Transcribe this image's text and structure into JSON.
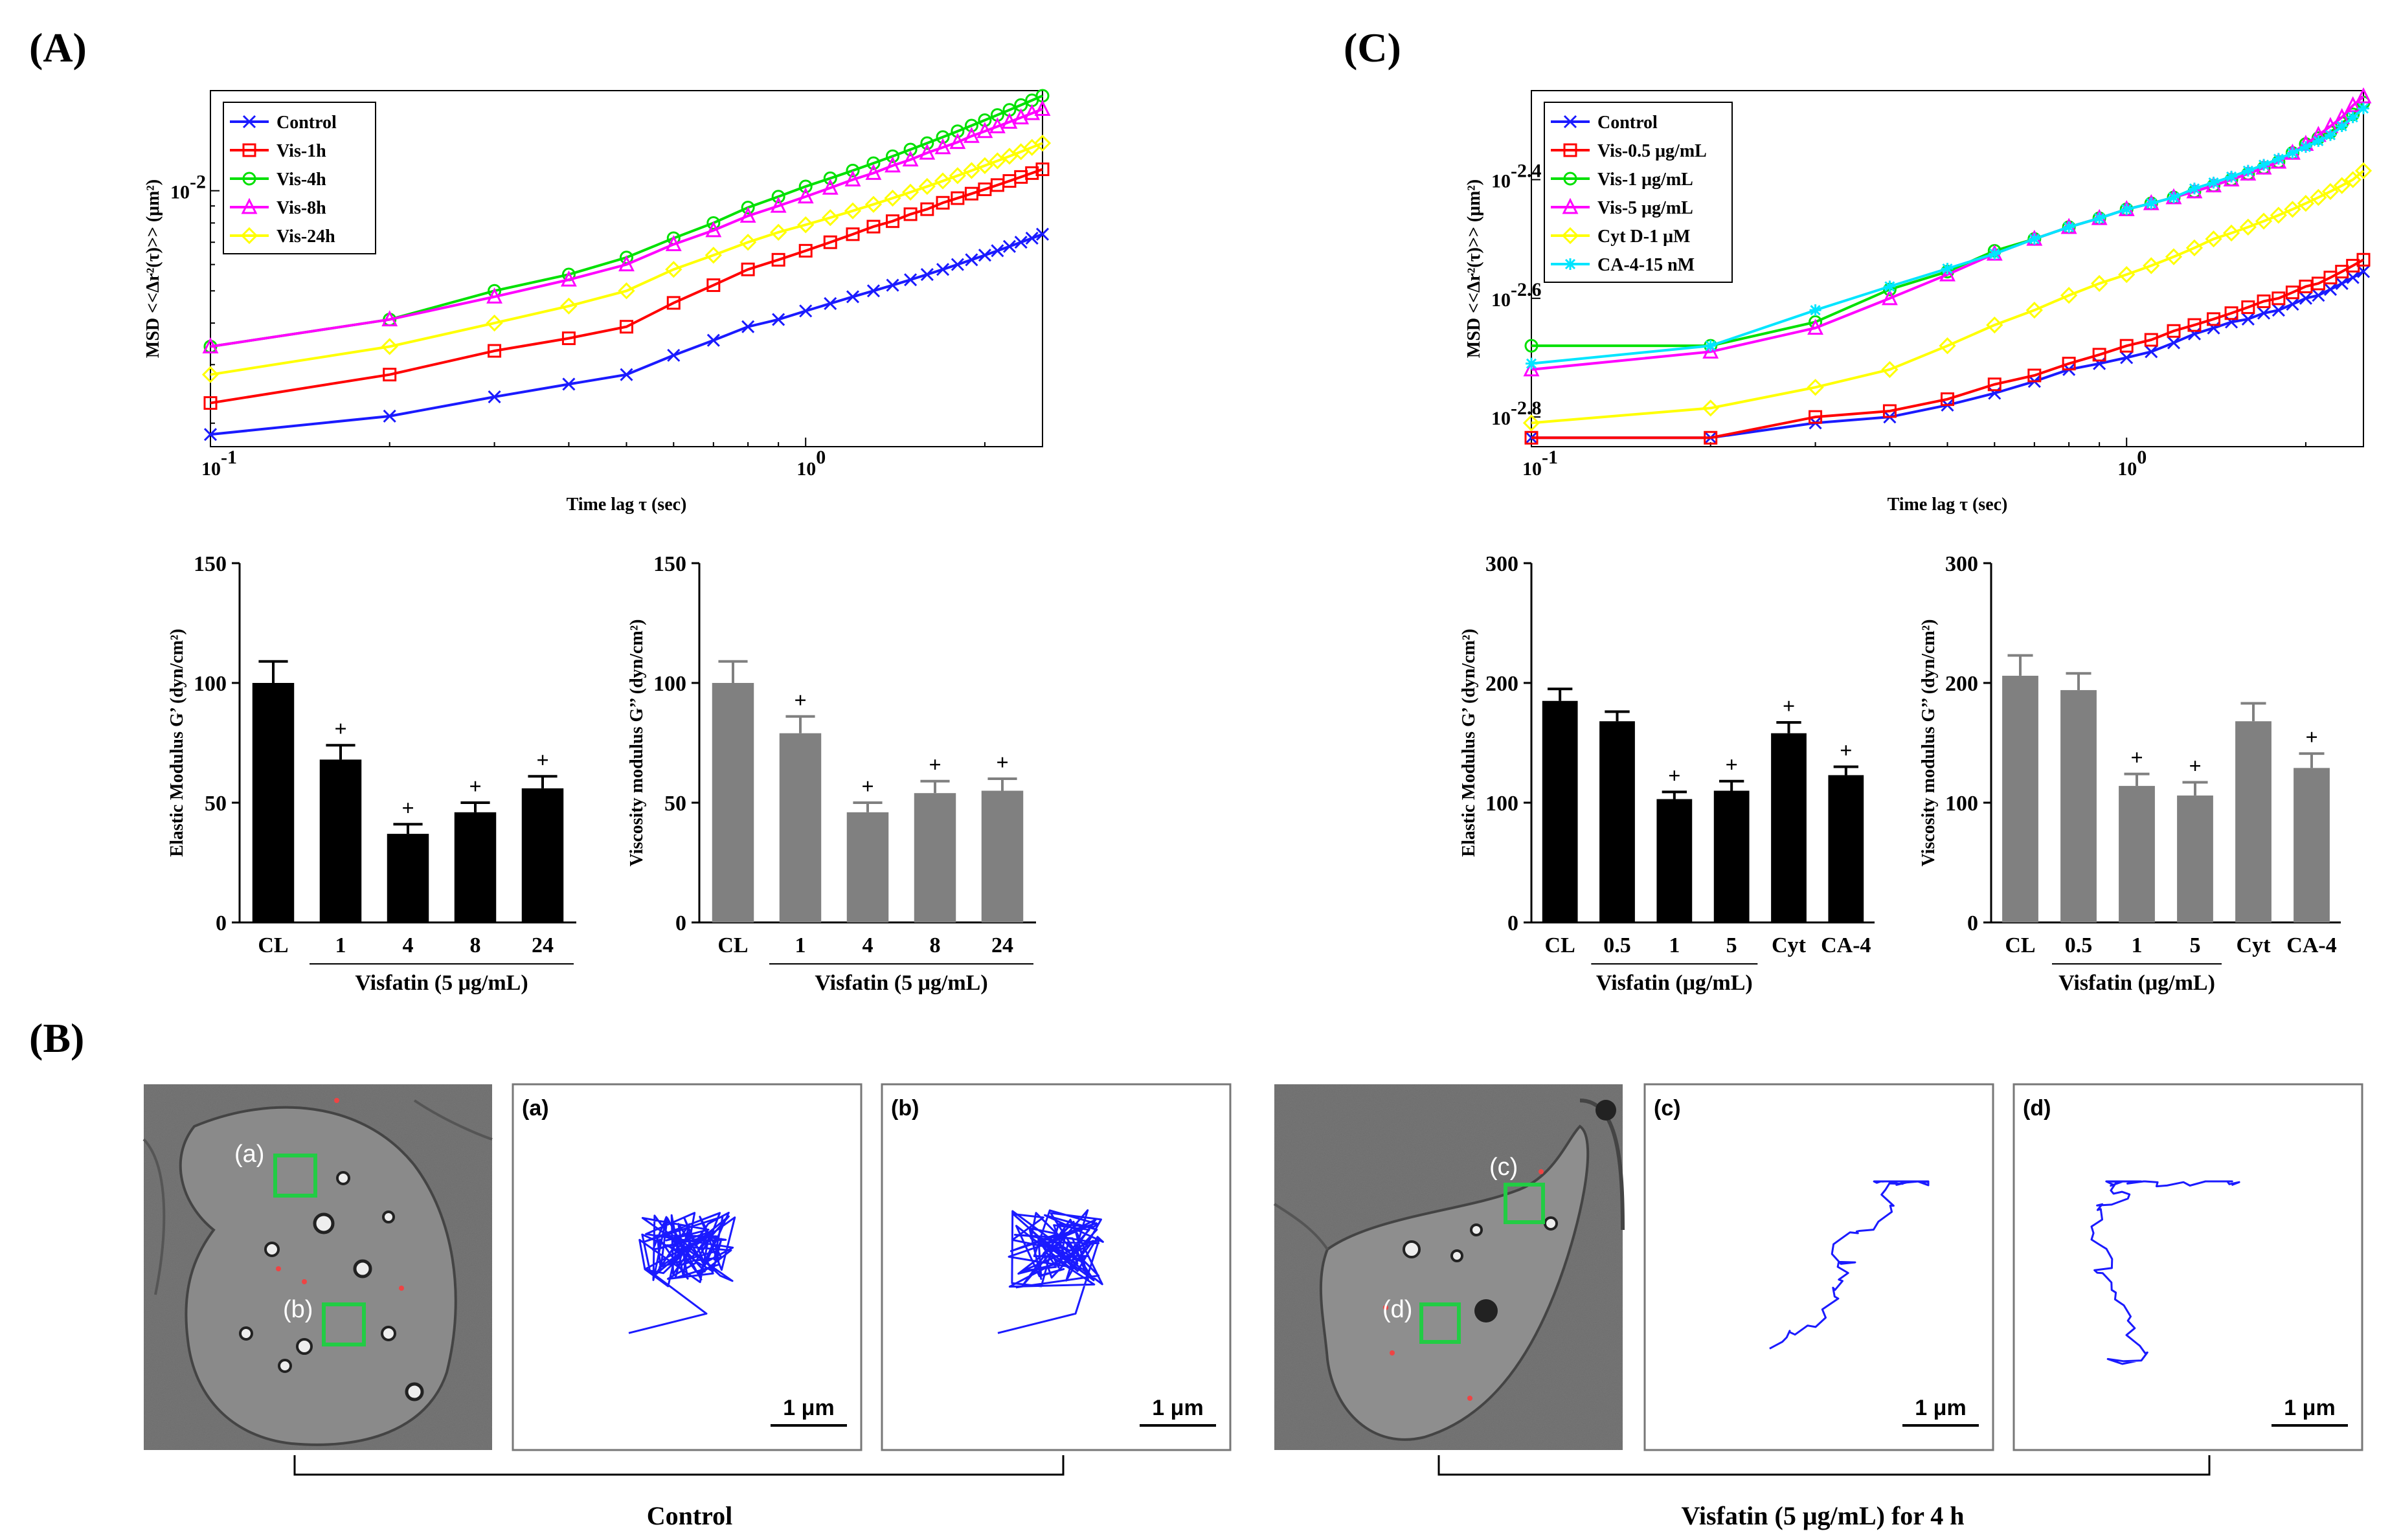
{
  "panels": {
    "A": "(A)",
    "B": "(B)",
    "C": "(C)"
  },
  "colors": {
    "control": "#1a1aff",
    "vis1": "#ff0000",
    "vis4": "#00e000",
    "vis8": "#ff00ff",
    "vis24": "#ffff00",
    "ca4": "#00e5ff",
    "black_bar": "#000000",
    "grey_bar": "#808080",
    "green_box": "#22cc44"
  },
  "chart_data": [
    {
      "id": "A-msd",
      "type": "line",
      "xscale": "log",
      "yscale": "log",
      "xlabel": "Time lag τ (sec)",
      "ylabel": "MSD <<Δr²(τ)>>  (μm²)",
      "x_ticks": [
        "10",
        "10"
      ],
      "x_tick_exp": [
        "-1",
        "0"
      ],
      "y_ticks": [
        "10"
      ],
      "y_tick_exp": [
        "-2"
      ],
      "xlim": [
        0.1,
        2.5
      ],
      "ylim": [
        0.0017,
        0.02
      ],
      "legend_position": "top-left",
      "x": [
        0.1,
        0.2,
        0.3,
        0.4,
        0.5,
        0.6,
        0.7,
        0.8,
        0.9,
        1.0,
        1.1,
        1.2,
        1.3,
        1.4,
        1.5,
        1.6,
        1.7,
        1.8,
        1.9,
        2.0,
        2.1,
        2.2,
        2.3,
        2.4,
        2.5
      ],
      "series": [
        {
          "name": "Control",
          "marker": "x",
          "color": "#1a1aff",
          "values": [
            0.00185,
            0.0021,
            0.0024,
            0.00262,
            0.0028,
            0.0032,
            0.00355,
            0.0039,
            0.0041,
            0.00435,
            0.00458,
            0.0048,
            0.005,
            0.0052,
            0.0054,
            0.0056,
            0.0058,
            0.006,
            0.0062,
            0.0064,
            0.0066,
            0.0068,
            0.007,
            0.0072,
            0.0074
          ]
        },
        {
          "name": "Vis-1h",
          "marker": "square",
          "color": "#ff0000",
          "values": [
            0.0023,
            0.0028,
            0.0033,
            0.0036,
            0.0039,
            0.0046,
            0.0052,
            0.0058,
            0.0062,
            0.0066,
            0.007,
            0.0074,
            0.0078,
            0.0081,
            0.0085,
            0.0088,
            0.0092,
            0.0095,
            0.0098,
            0.0101,
            0.0104,
            0.0107,
            0.011,
            0.0113,
            0.0116
          ]
        },
        {
          "name": "Vis-4h",
          "marker": "circle",
          "color": "#00e000",
          "values": [
            0.0034,
            0.0041,
            0.005,
            0.0056,
            0.0063,
            0.0072,
            0.008,
            0.0089,
            0.0096,
            0.0103,
            0.0109,
            0.0115,
            0.0121,
            0.0127,
            0.0133,
            0.0139,
            0.0145,
            0.0151,
            0.0157,
            0.0163,
            0.0169,
            0.0175,
            0.0181,
            0.0187,
            0.0193
          ]
        },
        {
          "name": "Vis-8h",
          "marker": "triangle",
          "color": "#ff00ff",
          "values": [
            0.0034,
            0.0041,
            0.0048,
            0.0054,
            0.006,
            0.0069,
            0.0076,
            0.0084,
            0.009,
            0.0096,
            0.0102,
            0.0108,
            0.0113,
            0.0119,
            0.0124,
            0.013,
            0.0135,
            0.014,
            0.0146,
            0.0151,
            0.0156,
            0.0161,
            0.0166,
            0.0171,
            0.0176
          ]
        },
        {
          "name": "Vis-24h",
          "marker": "diamond",
          "color": "#ffff00",
          "values": [
            0.0028,
            0.0034,
            0.004,
            0.0045,
            0.005,
            0.0058,
            0.0064,
            0.007,
            0.0075,
            0.0079,
            0.0083,
            0.0087,
            0.0091,
            0.0095,
            0.0099,
            0.0103,
            0.0107,
            0.0111,
            0.0115,
            0.0119,
            0.0123,
            0.0127,
            0.0131,
            0.0135,
            0.0139
          ]
        }
      ]
    },
    {
      "id": "C-msd",
      "type": "line",
      "xscale": "log",
      "yscale": "log",
      "xlabel": "Time lag τ (sec)",
      "ylabel": "MSD <<Δr²(τ)>>  (μm²)",
      "x_ticks": [
        "10",
        "10"
      ],
      "x_tick_exp": [
        "-1",
        "0"
      ],
      "y_ticks": [
        "10",
        "10",
        "10"
      ],
      "y_tick_exp": [
        "-2.8",
        "-2.6",
        "-2.4"
      ],
      "y_tick_values": [
        -2.8,
        -2.6,
        -2.4
      ],
      "xlim": [
        0.1,
        2.5
      ],
      "ylim_log10": [
        -2.85,
        -2.25
      ],
      "legend_position": "top-left",
      "x": [
        0.1,
        0.2,
        0.3,
        0.4,
        0.5,
        0.6,
        0.7,
        0.8,
        0.9,
        1.0,
        1.1,
        1.2,
        1.3,
        1.4,
        1.5,
        1.6,
        1.7,
        1.8,
        1.9,
        2.0,
        2.1,
        2.2,
        2.3,
        2.4,
        2.5
      ],
      "series": [
        {
          "name": "Control",
          "marker": "x",
          "color": "#1a1aff",
          "values_log10": [
            -2.835,
            -2.835,
            -2.81,
            -2.8,
            -2.78,
            -2.76,
            -2.74,
            -2.72,
            -2.71,
            -2.7,
            -2.69,
            -2.675,
            -2.66,
            -2.65,
            -2.64,
            -2.635,
            -2.625,
            -2.62,
            -2.61,
            -2.6,
            -2.595,
            -2.585,
            -2.575,
            -2.565,
            -2.555
          ]
        },
        {
          "name": "Vis-0.5 μg/mL",
          "marker": "square",
          "color": "#ff0000",
          "values_log10": [
            -2.835,
            -2.835,
            -2.8,
            -2.79,
            -2.77,
            -2.745,
            -2.73,
            -2.71,
            -2.695,
            -2.68,
            -2.67,
            -2.655,
            -2.645,
            -2.635,
            -2.625,
            -2.615,
            -2.605,
            -2.6,
            -2.59,
            -2.58,
            -2.575,
            -2.565,
            -2.555,
            -2.545,
            -2.535
          ]
        },
        {
          "name": "Vis-1 μg/mL",
          "marker": "circle",
          "color": "#00e000",
          "values_log10": [
            -2.68,
            -2.68,
            -2.64,
            -2.585,
            -2.555,
            -2.52,
            -2.5,
            -2.48,
            -2.465,
            -2.45,
            -2.44,
            -2.43,
            -2.42,
            -2.41,
            -2.4,
            -2.39,
            -2.38,
            -2.37,
            -2.355,
            -2.34,
            -2.33,
            -2.32,
            -2.305,
            -2.29,
            -2.27
          ]
        },
        {
          "name": "Vis-5 μg/mL",
          "marker": "triangle",
          "color": "#ff00ff",
          "values_log10": [
            -2.72,
            -2.69,
            -2.65,
            -2.6,
            -2.56,
            -2.525,
            -2.5,
            -2.48,
            -2.465,
            -2.45,
            -2.44,
            -2.43,
            -2.42,
            -2.41,
            -2.4,
            -2.39,
            -2.38,
            -2.37,
            -2.355,
            -2.34,
            -2.325,
            -2.31,
            -2.295,
            -2.275,
            -2.26
          ]
        },
        {
          "name": "Cyt D-1 μM",
          "marker": "diamond",
          "color": "#ffff00",
          "values_log10": [
            -2.81,
            -2.785,
            -2.75,
            -2.72,
            -2.68,
            -2.645,
            -2.62,
            -2.595,
            -2.575,
            -2.56,
            -2.545,
            -2.53,
            -2.515,
            -2.5,
            -2.49,
            -2.48,
            -2.47,
            -2.46,
            -2.45,
            -2.44,
            -2.43,
            -2.42,
            -2.41,
            -2.4,
            -2.385
          ]
        },
        {
          "name": "CA-4-15 nM",
          "marker": "star",
          "color": "#00e5ff",
          "values_log10": [
            -2.71,
            -2.68,
            -2.62,
            -2.58,
            -2.55,
            -2.525,
            -2.5,
            -2.48,
            -2.465,
            -2.45,
            -2.44,
            -2.43,
            -2.415,
            -2.405,
            -2.395,
            -2.385,
            -2.375,
            -2.365,
            -2.355,
            -2.345,
            -2.335,
            -2.325,
            -2.31,
            -2.295,
            -2.28
          ]
        }
      ]
    },
    {
      "id": "A-elastic",
      "type": "bar",
      "ylabel": "Elastic Modulus G’ (dyn/cm²)",
      "ylim": [
        0,
        150
      ],
      "yticks": [
        0,
        50,
        100,
        150
      ],
      "categories": [
        "CL",
        "1",
        "4",
        "8",
        "24"
      ],
      "values": [
        100,
        68,
        37,
        46,
        56
      ],
      "errors": [
        9,
        6,
        4,
        4,
        5
      ],
      "significant": [
        false,
        true,
        true,
        true,
        true
      ],
      "bar_color": "#000000",
      "group_label": "Visfatin (5 μg/mL)"
    },
    {
      "id": "A-viscous",
      "type": "bar",
      "ylabel": "Viscosity modulus G’’ (dyn/cm²)",
      "ylim": [
        0,
        150
      ],
      "yticks": [
        0,
        50,
        100,
        150
      ],
      "categories": [
        "CL",
        "1",
        "4",
        "8",
        "24"
      ],
      "values": [
        100,
        79,
        46,
        54,
        55
      ],
      "errors": [
        9,
        7,
        4,
        5,
        5
      ],
      "significant": [
        false,
        true,
        true,
        true,
        true
      ],
      "bar_color": "#808080",
      "group_label": "Visfatin (5 μg/mL)"
    },
    {
      "id": "C-elastic",
      "type": "bar",
      "ylabel": "Elastic Modulus G’ (dyn/cm²)",
      "ylim": [
        0,
        300
      ],
      "yticks": [
        0,
        100,
        200,
        300
      ],
      "categories": [
        "CL",
        "0.5",
        "1",
        "5",
        "Cyt",
        "CA-4"
      ],
      "values": [
        185,
        168,
        103,
        110,
        158,
        123
      ],
      "errors": [
        10,
        8,
        6,
        8,
        9,
        7
      ],
      "significant": [
        false,
        false,
        true,
        true,
        true,
        true
      ],
      "bar_color": "#000000",
      "group_label": "Visfatin (μg/mL)"
    },
    {
      "id": "C-viscous",
      "type": "bar",
      "ylabel": "Viscosity modulus G’’ (dyn/cm²)",
      "ylim": [
        0,
        300
      ],
      "yticks": [
        0,
        100,
        200,
        300
      ],
      "categories": [
        "CL",
        "0.5",
        "1",
        "5",
        "Cyt",
        "CA-4"
      ],
      "values": [
        206,
        194,
        114,
        106,
        168,
        129
      ],
      "errors": [
        17,
        14,
        10,
        11,
        15,
        12
      ],
      "significant": [
        false,
        false,
        true,
        true,
        false,
        true
      ],
      "bar_color": "#808080",
      "group_label": "Visfatin (μg/mL)"
    }
  ],
  "panel_b": {
    "cell_labels_left": [
      "(a)",
      "(b)"
    ],
    "cell_labels_right": [
      "(c)",
      "(d)"
    ],
    "trajectory_titles": [
      "(a)",
      "(b)",
      "(c)",
      "(d)"
    ],
    "scale_bar": "1 μm",
    "control_caption": "Control",
    "visfatin_caption": "Visfatin (5 μg/mL) for 4 h"
  }
}
